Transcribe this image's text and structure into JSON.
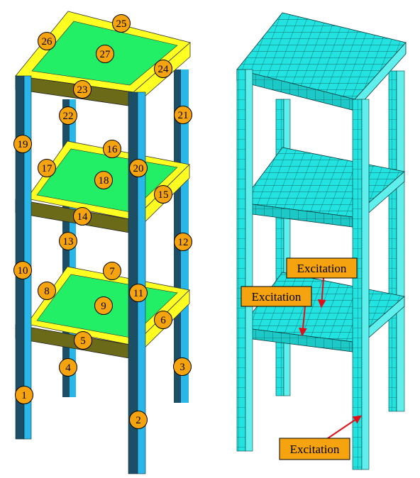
{
  "figure": {
    "left_panel": {
      "markers": [
        "1",
        "2",
        "3",
        "4",
        "5",
        "6",
        "7",
        "8",
        "9",
        "10",
        "11",
        "12",
        "13",
        "14",
        "15",
        "16",
        "17",
        "18",
        "19",
        "20",
        "21",
        "22",
        "23",
        "24",
        "25",
        "26",
        "27"
      ]
    },
    "right_panel": {
      "callouts": [
        "Excitation",
        "Excitation",
        "Excitation"
      ]
    }
  },
  "colors": {
    "column_front": "#1c4f66",
    "column_side": "#29b7ea",
    "slab_top": "#22ee66",
    "beam_top": "#ffff22",
    "beam_front": "#6b6a18",
    "marker_fill": "#f5a30f",
    "mesh_fill": "#22e3e0",
    "mesh_line": "#0b3a3a",
    "callout_fill": "#f5a30f",
    "arrow": "#e0101a"
  }
}
